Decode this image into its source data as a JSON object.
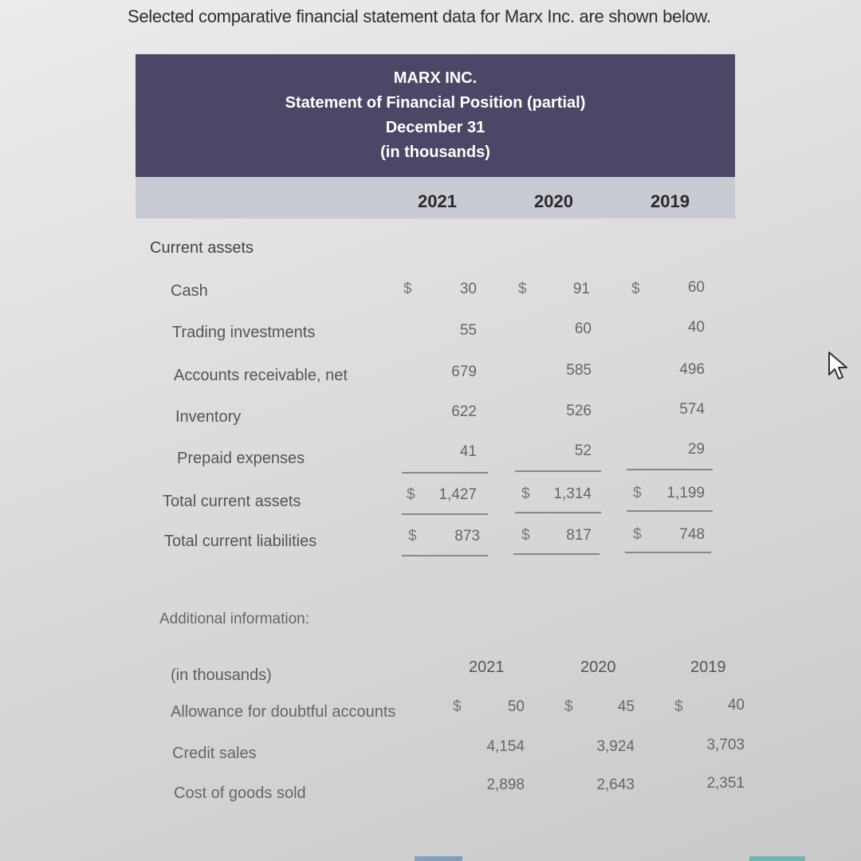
{
  "intro": "Selected comparative financial statement data for Marx Inc. are shown below.",
  "statement": {
    "company": "MARX INC.",
    "title": "Statement of Financial Position (partial)",
    "date": "December 31",
    "units": "(in thousands)",
    "years": [
      "2021",
      "2020",
      "2019"
    ],
    "section_label": "Current assets",
    "rows": [
      {
        "label": "Cash",
        "values": [
          "30",
          "91",
          "60"
        ],
        "currency": "$"
      },
      {
        "label": "Trading investments",
        "values": [
          "55",
          "60",
          "40"
        ]
      },
      {
        "label": "Accounts receivable, net",
        "values": [
          "679",
          "585",
          "496"
        ]
      },
      {
        "label": "Inventory",
        "values": [
          "622",
          "526",
          "574"
        ]
      },
      {
        "label": "Prepaid expenses",
        "values": [
          "41",
          "52",
          "29"
        ]
      }
    ],
    "totals": [
      {
        "label": "Total current assets",
        "values": [
          "1,427",
          "1,314",
          "1,199"
        ],
        "currency": "$"
      },
      {
        "label": "Total current liabilities",
        "values": [
          "873",
          "817",
          "748"
        ],
        "currency": "$"
      }
    ]
  },
  "additional": {
    "title": "Additional information:",
    "units": "(in thousands)",
    "years": [
      "2021",
      "2020",
      "2019"
    ],
    "rows": [
      {
        "label": "Allowance for doubtful accounts",
        "values": [
          "50",
          "45",
          "40"
        ],
        "currency": "$"
      },
      {
        "label": "Credit sales",
        "values": [
          "4,154",
          "3,924",
          "3,703"
        ]
      },
      {
        "label": "Cost of goods sold",
        "values": [
          "2,898",
          "2,643",
          "2,351"
        ]
      }
    ]
  },
  "icons": {
    "cursor": "mouse-pointer-icon"
  },
  "colors": {
    "banner": "#4a4866",
    "year_band": "#c8cbd4"
  }
}
